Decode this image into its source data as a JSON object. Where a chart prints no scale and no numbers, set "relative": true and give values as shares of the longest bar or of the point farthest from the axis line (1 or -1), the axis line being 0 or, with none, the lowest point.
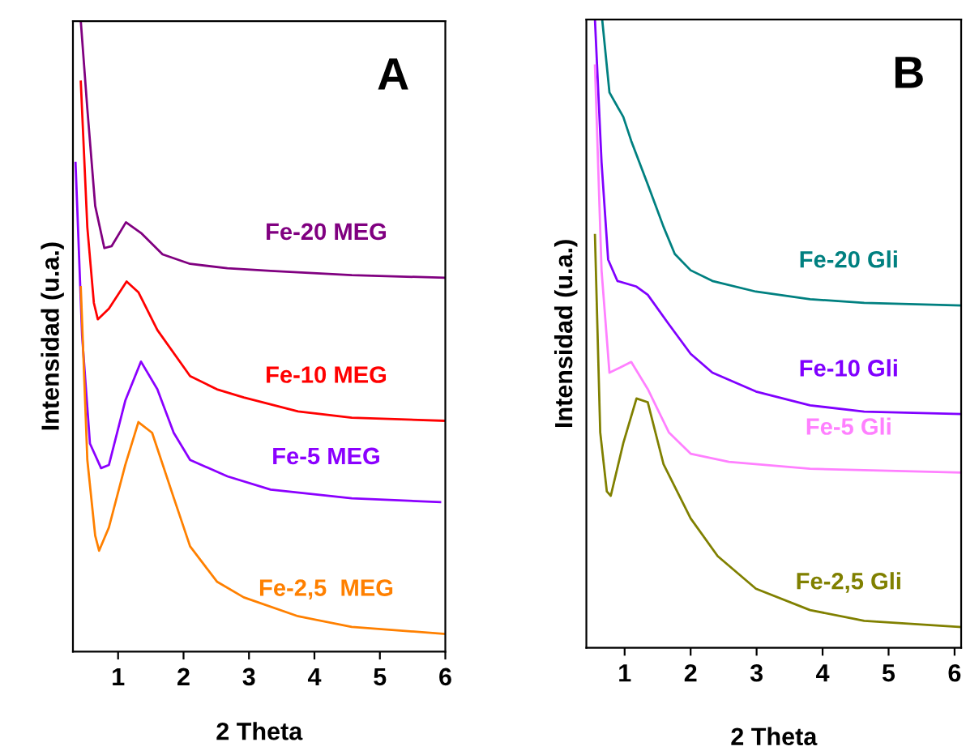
{
  "chart_data": [
    {
      "type": "line",
      "relative": true,
      "xlabel": "2 Theta",
      "ylabel": "Intensidad (u.a.)",
      "xlim": [
        0.31,
        6
      ],
      "xticks": [
        1,
        2,
        3,
        4,
        5,
        6
      ],
      "grid": false,
      "legend": false,
      "annotations": [
        "A"
      ],
      "series": [
        {
          "name": "Fe-20 MEG",
          "color": "#800080",
          "x": [
            0.43,
            0.53,
            0.65,
            0.79,
            0.9,
            1.12,
            1.35,
            1.68,
            2.1,
            2.67,
            3.33,
            4.57,
            6.0
          ],
          "values": [
            1.0,
            0.861,
            0.707,
            0.64,
            0.643,
            0.681,
            0.664,
            0.63,
            0.615,
            0.608,
            0.604,
            0.597,
            0.593
          ]
        },
        {
          "name": "Fe-10 MEG",
          "color": "#ff0000",
          "x": [
            0.43,
            0.53,
            0.63,
            0.69,
            0.86,
            1.13,
            1.31,
            1.6,
            2.1,
            2.51,
            2.92,
            3.75,
            4.57,
            6.0
          ],
          "values": [
            0.904,
            0.673,
            0.553,
            0.527,
            0.544,
            0.587,
            0.57,
            0.51,
            0.437,
            0.416,
            0.403,
            0.381,
            0.371,
            0.366
          ]
        },
        {
          "name": "Fe-5 MEG",
          "color": "#8b00ff",
          "x": [
            0.35,
            0.45,
            0.57,
            0.74,
            0.86,
            1.11,
            1.35,
            1.6,
            1.85,
            2.1,
            2.67,
            3.33,
            4.57,
            5.92
          ],
          "values": [
            0.775,
            0.501,
            0.33,
            0.291,
            0.296,
            0.398,
            0.46,
            0.416,
            0.347,
            0.304,
            0.278,
            0.257,
            0.243,
            0.237
          ]
        },
        {
          "name": "Fe-2,5  MEG",
          "color": "#ff8000",
          "x": [
            0.43,
            0.53,
            0.65,
            0.71,
            0.86,
            1.11,
            1.31,
            1.52,
            1.85,
            2.1,
            2.51,
            2.92,
            3.75,
            4.57,
            6.0
          ],
          "values": [
            0.578,
            0.304,
            0.184,
            0.16,
            0.197,
            0.296,
            0.364,
            0.347,
            0.244,
            0.167,
            0.111,
            0.086,
            0.056,
            0.039,
            0.028
          ]
        }
      ]
    },
    {
      "type": "line",
      "relative": true,
      "xlabel": "2 Theta",
      "ylabel": "Intensidad (u.a.)",
      "xlim": [
        0.42,
        6.1
      ],
      "xticks": [
        1,
        2,
        3,
        4,
        5,
        6
      ],
      "grid": false,
      "legend": false,
      "annotations": [
        "B"
      ],
      "series": [
        {
          "name": "Fe-20 Gli",
          "color": "#008080",
          "x": [
            0.66,
            0.77,
            0.98,
            1.1,
            1.35,
            1.59,
            1.76,
            2.0,
            2.33,
            2.99,
            3.81,
            4.63,
            6.1
          ],
          "values": [
            1.0,
            0.884,
            0.845,
            0.807,
            0.738,
            0.67,
            0.627,
            0.601,
            0.584,
            0.567,
            0.555,
            0.549,
            0.545
          ]
        },
        {
          "name": "Fe-10 Gli",
          "color": "#8000ff",
          "x": [
            0.55,
            0.65,
            0.75,
            0.89,
            1.18,
            1.35,
            1.67,
            2.0,
            2.33,
            2.99,
            3.81,
            4.63,
            6.1
          ],
          "values": [
            1.0,
            0.773,
            0.618,
            0.584,
            0.575,
            0.562,
            0.515,
            0.468,
            0.438,
            0.408,
            0.386,
            0.376,
            0.372
          ]
        },
        {
          "name": "Fe-5 Gli",
          "color": "#ff80ff",
          "x": [
            0.55,
            0.65,
            0.77,
            0.93,
            1.1,
            1.35,
            1.67,
            2.0,
            2.58,
            3.81,
            6.1
          ],
          "values": [
            0.927,
            0.601,
            0.438,
            0.446,
            0.455,
            0.412,
            0.343,
            0.309,
            0.296,
            0.285,
            0.279
          ]
        },
        {
          "name": "Fe-2,5 Gli",
          "color": "#808000",
          "x": [
            0.55,
            0.63,
            0.73,
            0.79,
            0.98,
            1.18,
            1.35,
            1.59,
            2.0,
            2.41,
            2.99,
            3.81,
            4.63,
            6.1
          ],
          "values": [
            0.657,
            0.343,
            0.249,
            0.242,
            0.326,
            0.397,
            0.391,
            0.292,
            0.206,
            0.146,
            0.094,
            0.06,
            0.043,
            0.033
          ]
        }
      ]
    }
  ]
}
